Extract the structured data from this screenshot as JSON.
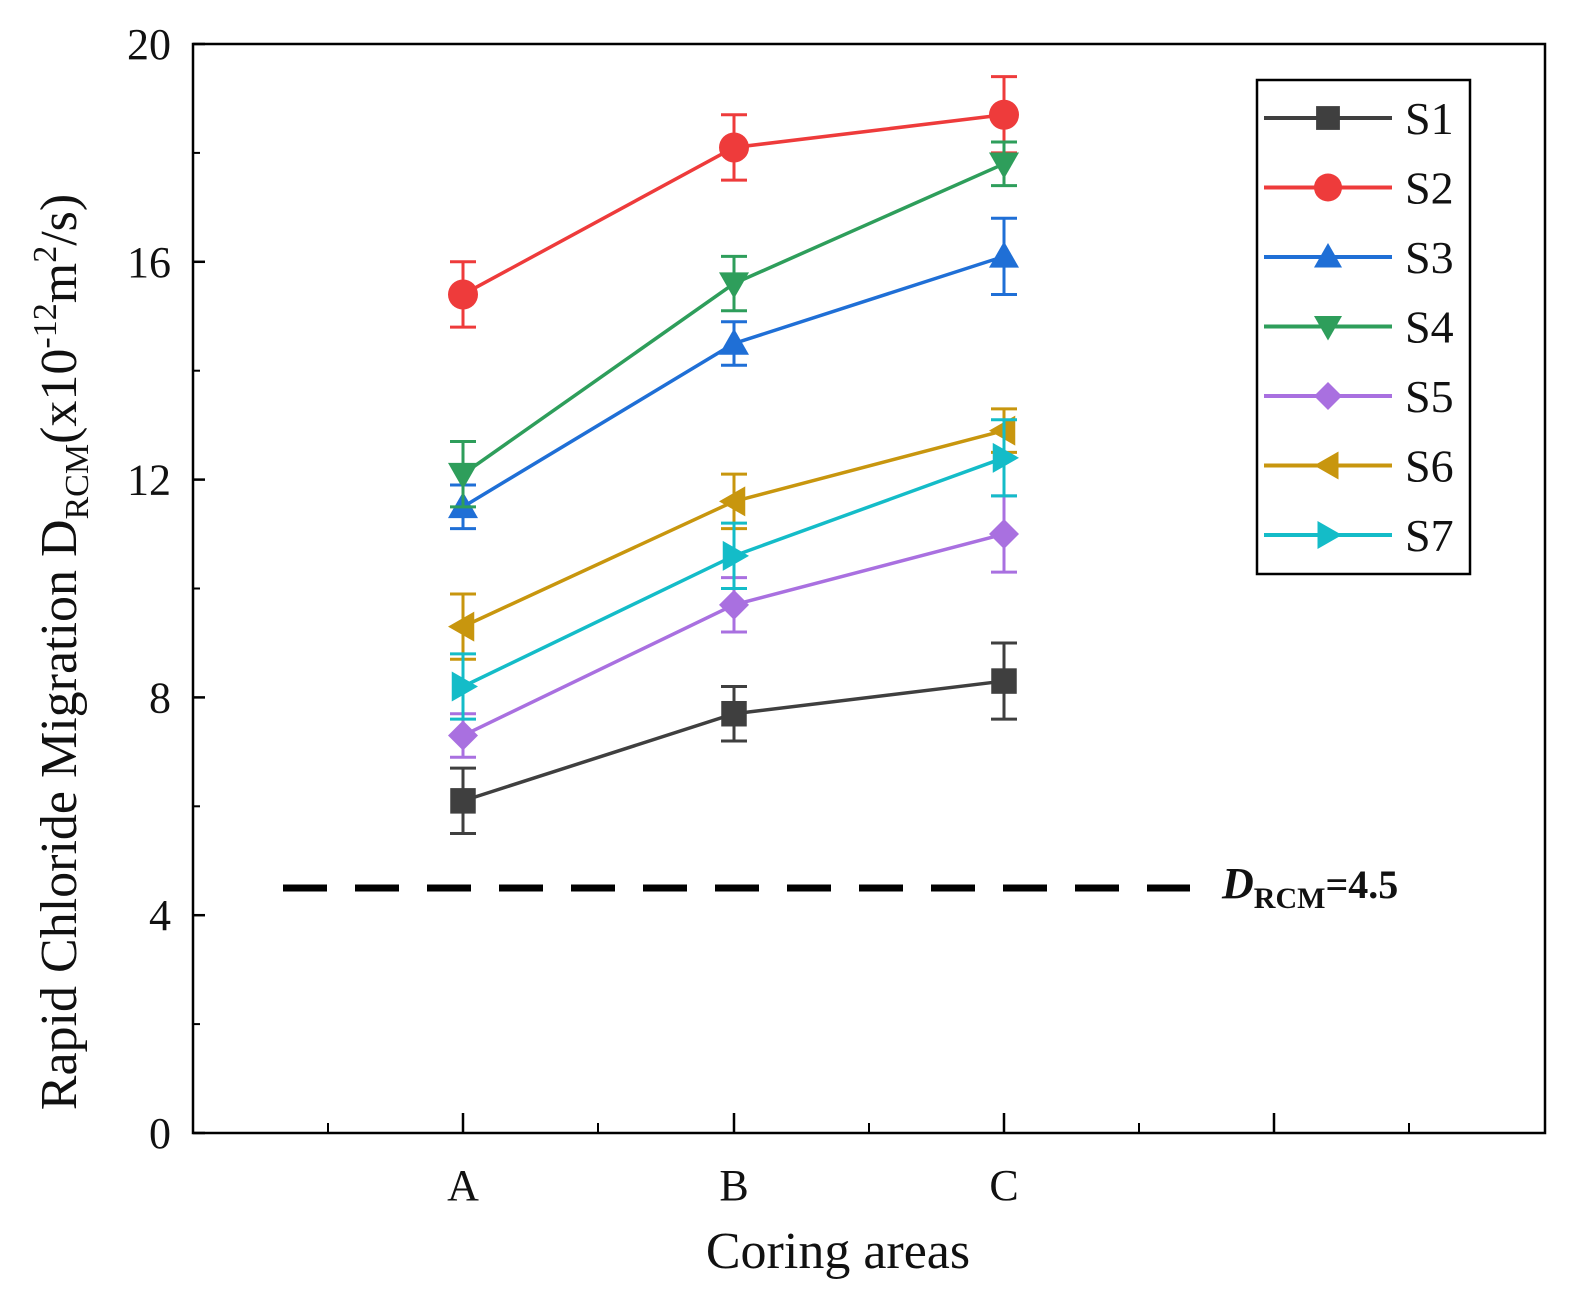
{
  "chart_data": {
    "type": "line",
    "title": "",
    "xlabel": "Coring areas",
    "ylabel": {
      "prefix": "Rapid Chloride Migration D",
      "sub": "RCM",
      "unit_open": "(x10",
      "exp": "-12",
      "unit_mid": "m",
      "sq": "2",
      "unit_close": "/s)"
    },
    "categories": [
      "A",
      "B",
      "C"
    ],
    "ylim": [
      0,
      20
    ],
    "yticks": [
      "0",
      "4",
      "8",
      "12",
      "16",
      "20"
    ],
    "grid": false,
    "legend_position": "top-right",
    "series": [
      {
        "name": "S1",
        "color": "#3f3f3f",
        "marker": "square",
        "values": [
          6.1,
          7.7,
          8.3
        ],
        "errors": [
          0.6,
          0.5,
          0.7
        ]
      },
      {
        "name": "S2",
        "color": "#ee3b3b",
        "marker": "circle",
        "values": [
          15.4,
          18.1,
          18.7
        ],
        "errors": [
          0.6,
          0.6,
          0.7
        ]
      },
      {
        "name": "S3",
        "color": "#1f6fd6",
        "marker": "triangle-up",
        "values": [
          11.5,
          14.5,
          16.1
        ],
        "errors": [
          0.4,
          0.4,
          0.7
        ]
      },
      {
        "name": "S4",
        "color": "#2e9e5b",
        "marker": "triangle-down",
        "values": [
          12.1,
          15.6,
          17.8
        ],
        "errors": [
          0.6,
          0.5,
          0.4
        ]
      },
      {
        "name": "S5",
        "color": "#a970e0",
        "marker": "diamond",
        "values": [
          7.3,
          9.7,
          11.0
        ],
        "errors": [
          0.4,
          0.5,
          0.7
        ]
      },
      {
        "name": "S6",
        "color": "#c8960e",
        "marker": "triangle-left",
        "values": [
          9.3,
          11.6,
          12.9
        ],
        "errors": [
          0.6,
          0.5,
          0.4
        ]
      },
      {
        "name": "S7",
        "color": "#14bcc8",
        "marker": "triangle-right",
        "values": [
          8.2,
          10.6,
          12.4
        ],
        "errors": [
          0.6,
          0.6,
          0.7
        ]
      }
    ],
    "reference_line": {
      "value": 4.5,
      "label_symbol": "D",
      "label_sub": "RCM",
      "label_value": "=4.5",
      "color": "#000000"
    }
  }
}
